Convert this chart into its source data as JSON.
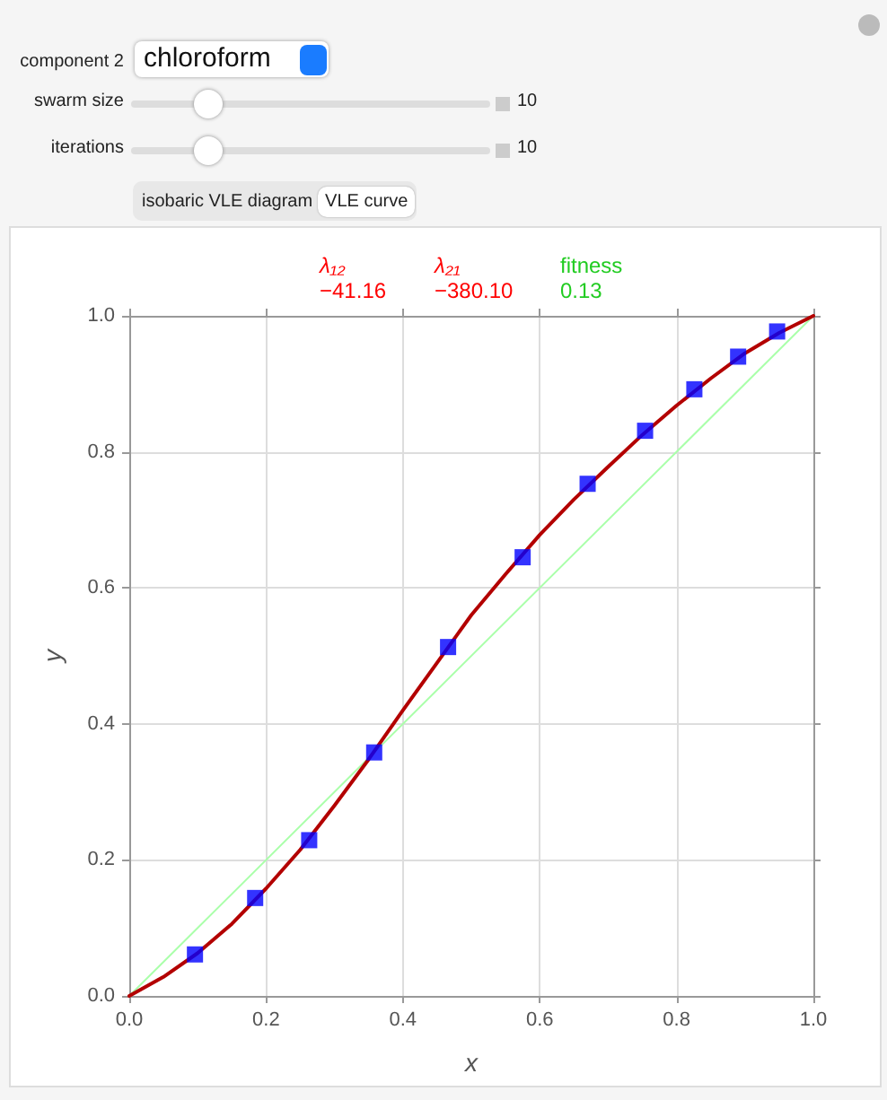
{
  "chart_data": {
    "type": "scatter",
    "xlabel": "x",
    "ylabel": "y",
    "annotations": [
      "component 2",
      "chloroform",
      "swarm size",
      "10",
      "iterations",
      "10",
      "isobaric VLE diagram",
      "VLE curve",
      "λ₁₂",
      "−41.16",
      "λ₂₁",
      "−380.10",
      "fitness",
      "0.13"
    ],
    "xlim": [
      0,
      1
    ],
    "ylim": [
      0,
      1
    ],
    "xticks": [
      {
        "value": 0,
        "label": "0.0"
      },
      0.2,
      0.4,
      0.6,
      0.8,
      {
        "value": 1,
        "label": "1.0"
      }
    ],
    "yticks": [
      {
        "value": 0,
        "label": "0.0"
      },
      0.2,
      0.4,
      0.6,
      0.8,
      {
        "value": 1,
        "label": "1.0"
      }
    ],
    "grid": true,
    "series": [
      {
        "type": "line",
        "color": "#aaffaa",
        "marker": "none",
        "x": [
          0,
          1
        ],
        "values": [
          0,
          1
        ]
      },
      {
        "type": "line",
        "color": "#b30000",
        "marker": "none",
        "x": [
          0,
          0.05,
          0.1,
          0.15,
          0.2,
          0.25,
          0.3,
          0.35,
          0.4,
          0.45,
          0.5,
          0.55,
          0.6,
          0.65,
          0.7,
          0.75,
          0.8,
          0.85,
          0.9,
          0.95,
          1
        ],
        "values": [
          0,
          0.028,
          0.063,
          0.106,
          0.158,
          0.215,
          0.28,
          0.348,
          0.42,
          0.49,
          0.56,
          0.62,
          0.678,
          0.73,
          0.778,
          0.825,
          0.868,
          0.908,
          0.945,
          0.975,
          1
        ]
      },
      {
        "color": "#0000ff",
        "marker": "square",
        "x": [
          0.096,
          0.184,
          0.263,
          0.358,
          0.466,
          0.575,
          0.67,
          0.754,
          0.826,
          0.89,
          0.947
        ],
        "values": [
          0.061,
          0.144,
          0.229,
          0.358,
          0.513,
          0.645,
          0.753,
          0.831,
          0.892,
          0.94,
          0.977
        ]
      }
    ]
  }
}
